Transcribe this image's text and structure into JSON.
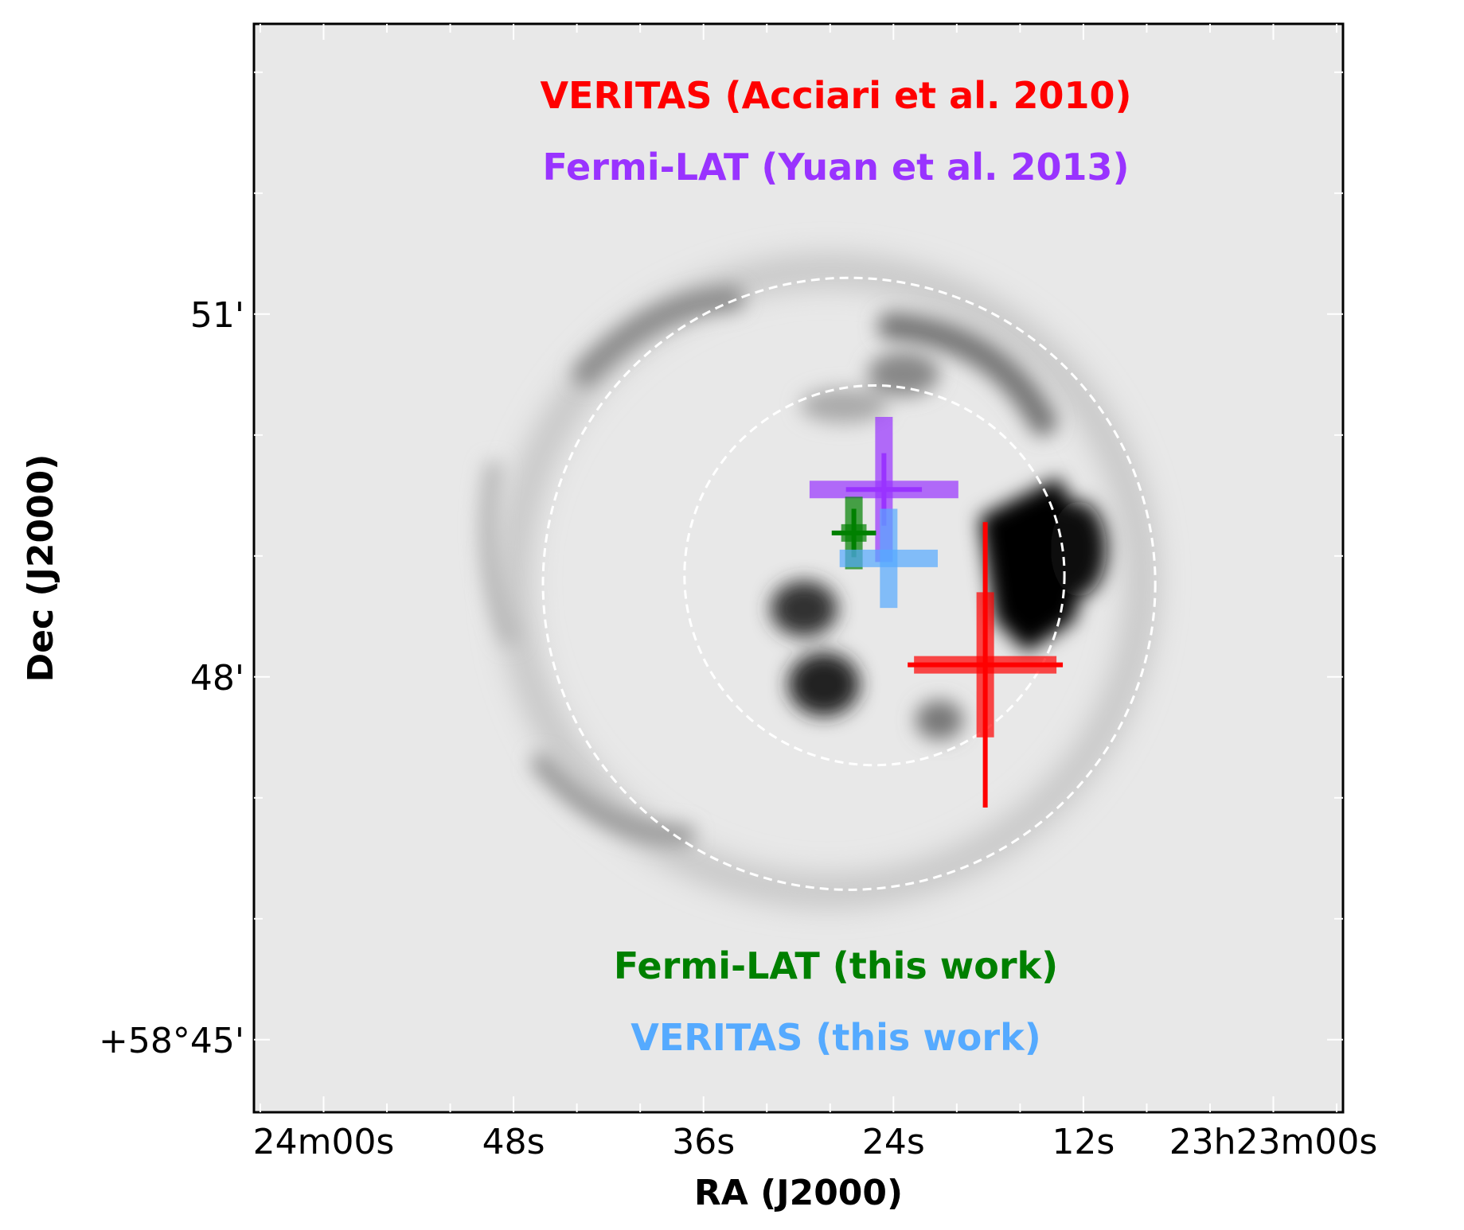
{
  "chart_data": {
    "type": "scatter",
    "title": "",
    "xlabel": "RA (J2000)",
    "ylabel": "Dec (J2000)",
    "xlim_sec_of_23h23m": [
      64.4,
      -4.4
    ],
    "ylim_arcmin_above_58deg": [
      44.4,
      53.4
    ],
    "x_ticks": [
      {
        "value": 60,
        "label": "24m00s"
      },
      {
        "value": 48,
        "label": "48s"
      },
      {
        "value": 36,
        "label": "36s"
      },
      {
        "value": 24,
        "label": "24s"
      },
      {
        "value": 12,
        "label": "12s"
      },
      {
        "value": 0,
        "label": "23h23m00s"
      }
    ],
    "y_ticks": [
      {
        "value": 51,
        "label": "51'"
      },
      {
        "value": 48,
        "label": "48'"
      },
      {
        "value": 45,
        "label": "+58°45'"
      }
    ],
    "legend": [
      {
        "label": "VERITAS (Acciari et al. 2010)",
        "color": "#ff0000",
        "position": "top"
      },
      {
        "label": "Fermi-LAT (Yuan et al. 2013)",
        "color": "#9933ff",
        "position": "top"
      },
      {
        "label": "Fermi-LAT (this work)",
        "color": "#008000",
        "position": "bottom"
      },
      {
        "label": "VERITAS (this work)",
        "color": "#55aaff",
        "position": "bottom"
      }
    ],
    "circles": [
      {
        "ra": 26.8,
        "dec": 48.77,
        "radius_arcmin": 2.53
      },
      {
        "ra": 25.2,
        "dec": 48.84,
        "radius_arcmin": 1.57
      }
    ],
    "series": [
      {
        "name": "VERITAS (Acciari et al. 2010)",
        "color": "#ff0000",
        "ra": 18.2,
        "dec": 48.1,
        "stat_err_ra": 4.9,
        "stat_err_dec": 1.18,
        "sys_err_ra": 4.5,
        "sys_err_dec": 0.6
      },
      {
        "name": "Fermi-LAT (Yuan et al. 2013)",
        "color": "#9933ff",
        "ra": 24.6,
        "dec": 49.55,
        "stat_err_ra": 2.4,
        "stat_err_dec": 0.3,
        "sys_err_ra": 4.7,
        "sys_err_dec": 0.6
      },
      {
        "name": "Fermi-LAT (this work)",
        "color": "#008000",
        "ra": 26.5,
        "dec": 49.19,
        "stat_err_ra": 1.4,
        "stat_err_dec": 0.2,
        "sys_err_ra": 0.8,
        "sys_err_dec": 0.3
      },
      {
        "name": "VERITAS (this work)",
        "color": "#55aaff",
        "ra": 24.3,
        "dec": 48.98,
        "stat_err_ra": 0.0,
        "stat_err_dec": 0.0,
        "sys_err_ra": 3.1,
        "sys_err_dec": 0.41
      }
    ],
    "grid": false
  }
}
